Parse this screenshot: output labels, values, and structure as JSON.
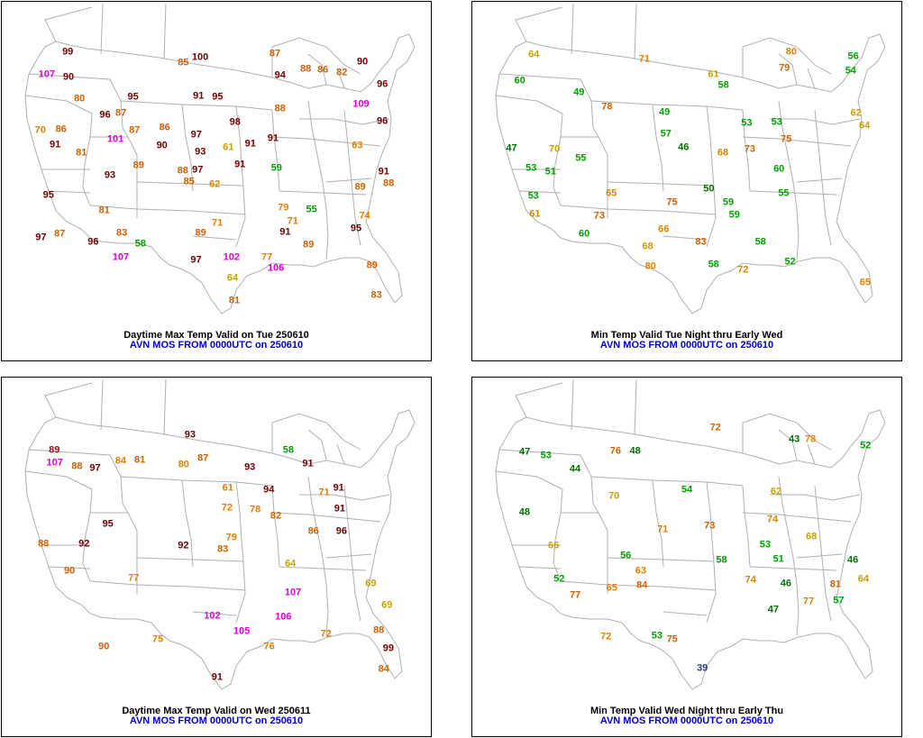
{
  "colors": {
    "green": "#00a000",
    "dgreen": "#007000",
    "orange": "#e08000",
    "dorange": "#d06000",
    "yellow": "#c8a000",
    "red": "#d04000",
    "dred": "#a01010",
    "maroon": "#700000",
    "magenta": "#e000e0",
    "blue": "#0000cc",
    "navy": "#204080",
    "map_lines": "#b0b0b0"
  },
  "panels": [
    {
      "title": "Daytime Max Temp Valid on Tue 250610",
      "subtitle": "AVN MOS FROM 0000UTC on 250610",
      "labels": [
        [
          "62",
          "orange"
        ],
        [
          "80",
          "dorange"
        ],
        [
          "97",
          "maroon"
        ],
        [
          "91",
          "maroon"
        ],
        [
          "58",
          "green"
        ],
        [
          "87",
          "dorange"
        ],
        [
          "95",
          "maroon"
        ],
        [
          "94",
          "maroon"
        ],
        [
          "91",
          "maroon"
        ],
        [
          "83",
          "dorange"
        ],
        [
          "81",
          "dorange"
        ],
        [
          "96",
          "maroon"
        ],
        [
          "85",
          "dorange"
        ],
        [
          "88",
          "dorange"
        ],
        [
          "91",
          "maroon"
        ],
        [
          "98",
          "maroon"
        ],
        [
          "96",
          "maroon"
        ],
        [
          "86",
          "dorange"
        ],
        [
          "55",
          "green"
        ],
        [
          "100",
          "maroon"
        ],
        [
          "91",
          "maroon"
        ],
        [
          "79",
          "orange"
        ],
        [
          "96",
          "maroon"
        ],
        [
          "97",
          "maroon"
        ],
        [
          "93",
          "maroon"
        ],
        [
          "95",
          "maroon"
        ],
        [
          "88",
          "dorange"
        ],
        [
          "89",
          "dorange"
        ],
        [
          "101",
          "magenta"
        ],
        [
          "91",
          "maroon"
        ],
        [
          "70",
          "orange"
        ],
        [
          "109",
          "magenta"
        ],
        [
          "107",
          "magenta"
        ],
        [
          "71",
          "orange"
        ],
        [
          "106",
          "magenta"
        ],
        [
          "107",
          "magenta"
        ],
        [
          "102",
          "magenta"
        ],
        [
          "82",
          "dorange"
        ],
        [
          "89",
          "dorange"
        ],
        [
          "86",
          "dorange"
        ],
        [
          "87",
          "dorange"
        ],
        [
          "86",
          "dorange"
        ],
        [
          "85",
          "dorange"
        ],
        [
          "97",
          "maroon"
        ],
        [
          "89",
          "dorange"
        ],
        [
          "87",
          "dorange"
        ],
        [
          "99",
          "maroon"
        ],
        [
          "96",
          "maroon"
        ],
        [
          "95",
          "maroon"
        ],
        [
          "97",
          "maroon"
        ],
        [
          "64",
          "yellow"
        ],
        [
          "61",
          "yellow"
        ],
        [
          "59",
          "green"
        ],
        [
          "74",
          "orange"
        ],
        [
          "63",
          "orange"
        ],
        [
          "71",
          "orange"
        ],
        [
          "81",
          "dorange"
        ],
        [
          "77",
          "orange"
        ],
        [
          "88",
          "dorange"
        ],
        [
          "91",
          "maroon"
        ],
        [
          "89",
          "dorange"
        ],
        [
          "95",
          "maroon"
        ],
        [
          "93",
          "maroon"
        ],
        [
          "91",
          "maroon"
        ],
        [
          "81",
          "dorange"
        ],
        [
          "83",
          "dorange"
        ],
        [
          "90",
          "maroon"
        ],
        [
          "89",
          "dorange"
        ],
        [
          "90",
          "maroon"
        ],
        [
          "88",
          "dorange"
        ],
        [
          "87",
          "dorange"
        ],
        [
          "90",
          "maroon"
        ]
      ]
    },
    {
      "title": "Min Temp Valid Tue Night thru Early Wed",
      "subtitle": "AVN MOS FROM 0000UTC on 250610",
      "labels": [
        [
          "47",
          "dgreen"
        ],
        [
          "53",
          "green"
        ],
        [
          "56",
          "green"
        ],
        [
          "60",
          "green"
        ],
        [
          "51",
          "green"
        ],
        [
          "58",
          "green"
        ],
        [
          "49",
          "green"
        ],
        [
          "46",
          "dgreen"
        ],
        [
          "55",
          "green"
        ],
        [
          "49",
          "green"
        ],
        [
          "60",
          "green"
        ],
        [
          "58",
          "green"
        ],
        [
          "53",
          "green"
        ],
        [
          "50",
          "dgreen"
        ],
        [
          "66",
          "orange"
        ],
        [
          "58",
          "green"
        ],
        [
          "52",
          "green"
        ],
        [
          "54",
          "green"
        ],
        [
          "57",
          "green"
        ],
        [
          "59",
          "green"
        ],
        [
          "53",
          "green"
        ],
        [
          "68",
          "orange"
        ],
        [
          "61",
          "orange"
        ],
        [
          "75",
          "dorange"
        ],
        [
          "64",
          "yellow"
        ],
        [
          "78",
          "dorange"
        ],
        [
          "83",
          "dorange"
        ],
        [
          "73",
          "dorange"
        ],
        [
          "65",
          "orange"
        ],
        [
          "64",
          "yellow"
        ],
        [
          "75",
          "dorange"
        ],
        [
          "73",
          "dorange"
        ],
        [
          "79",
          "dorange"
        ],
        [
          "80",
          "orange"
        ],
        [
          "55",
          "green"
        ],
        [
          "53",
          "green"
        ],
        [
          "59",
          "green"
        ],
        [
          "60",
          "green"
        ],
        [
          "72",
          "orange"
        ],
        [
          "71",
          "orange"
        ],
        [
          "80",
          "orange"
        ],
        [
          "61",
          "yellow"
        ],
        [
          "62",
          "yellow"
        ],
        [
          "70",
          "yellow"
        ],
        [
          "68",
          "yellow"
        ],
        [
          "65",
          "orange"
        ]
      ]
    },
    {
      "title": "Daytime Max Temp Valid on Wed 250611",
      "subtitle": "AVN MOS FROM 0000UTC on 250610",
      "labels": [
        [
          "61",
          "orange"
        ],
        [
          "72",
          "orange"
        ],
        [
          "89",
          "dred"
        ],
        [
          "91",
          "maroon"
        ],
        [
          "87",
          "dorange"
        ],
        [
          "58",
          "green"
        ],
        [
          "95",
          "maroon"
        ],
        [
          "90",
          "dorange"
        ],
        [
          "93",
          "maroon"
        ],
        [
          "64",
          "yellow"
        ],
        [
          "88",
          "dorange"
        ],
        [
          "99",
          "maroon"
        ],
        [
          "91",
          "maroon"
        ],
        [
          "69",
          "yellow"
        ],
        [
          "106",
          "magenta"
        ],
        [
          "105",
          "magenta"
        ],
        [
          "107",
          "magenta"
        ],
        [
          "107",
          "magenta"
        ],
        [
          "102",
          "magenta"
        ],
        [
          "82",
          "dorange"
        ],
        [
          "92",
          "maroon"
        ],
        [
          "91",
          "maroon"
        ],
        [
          "97",
          "maroon"
        ],
        [
          "84",
          "dorange"
        ],
        [
          "79",
          "orange"
        ],
        [
          "93",
          "maroon"
        ],
        [
          "90",
          "dorange"
        ],
        [
          "92",
          "maroon"
        ],
        [
          "96",
          "maroon"
        ],
        [
          "77",
          "orange"
        ],
        [
          "80",
          "orange"
        ],
        [
          "81",
          "dorange"
        ],
        [
          "83",
          "dorange"
        ],
        [
          "88",
          "dorange"
        ],
        [
          "86",
          "dorange"
        ],
        [
          "94",
          "maroon"
        ],
        [
          "91",
          "maroon"
        ],
        [
          "88",
          "dorange"
        ],
        [
          "69",
          "yellow"
        ],
        [
          "75",
          "orange"
        ],
        [
          "78",
          "orange"
        ],
        [
          "84",
          "orange"
        ],
        [
          "71",
          "orange"
        ],
        [
          "76",
          "orange"
        ],
        [
          "72",
          "orange"
        ]
      ]
    },
    {
      "title": "Min Temp Valid Wed Night thru Early Thu",
      "subtitle": "AVN MOS FROM 0000UTC on 250610",
      "labels": [
        [
          "47",
          "dgreen"
        ],
        [
          "52",
          "green"
        ],
        [
          "53",
          "green"
        ],
        [
          "57",
          "green"
        ],
        [
          "48",
          "dgreen"
        ],
        [
          "43",
          "dgreen"
        ],
        [
          "46",
          "dgreen"
        ],
        [
          "48",
          "dgreen"
        ],
        [
          "53",
          "green"
        ],
        [
          "53",
          "green"
        ],
        [
          "52",
          "green"
        ],
        [
          "44",
          "dgreen"
        ],
        [
          "51",
          "green"
        ],
        [
          "65",
          "orange"
        ],
        [
          "63",
          "orange"
        ],
        [
          "72",
          "dorange"
        ],
        [
          "64",
          "yellow"
        ],
        [
          "77",
          "dorange"
        ],
        [
          "84",
          "dorange"
        ],
        [
          "75",
          "dorange"
        ],
        [
          "73",
          "dorange"
        ],
        [
          "70",
          "yellow"
        ],
        [
          "76",
          "dorange"
        ],
        [
          "81",
          "dorange"
        ],
        [
          "39",
          "navy"
        ],
        [
          "47",
          "dgreen"
        ],
        [
          "46",
          "dgreen"
        ],
        [
          "54",
          "green"
        ],
        [
          "56",
          "green"
        ],
        [
          "58",
          "green"
        ],
        [
          "62",
          "yellow"
        ],
        [
          "66",
          "yellow"
        ],
        [
          "68",
          "yellow"
        ],
        [
          "72",
          "orange"
        ],
        [
          "71",
          "orange"
        ],
        [
          "74",
          "orange"
        ],
        [
          "77",
          "orange"
        ],
        [
          "78",
          "orange"
        ],
        [
          "74",
          "orange"
        ]
      ]
    }
  ]
}
